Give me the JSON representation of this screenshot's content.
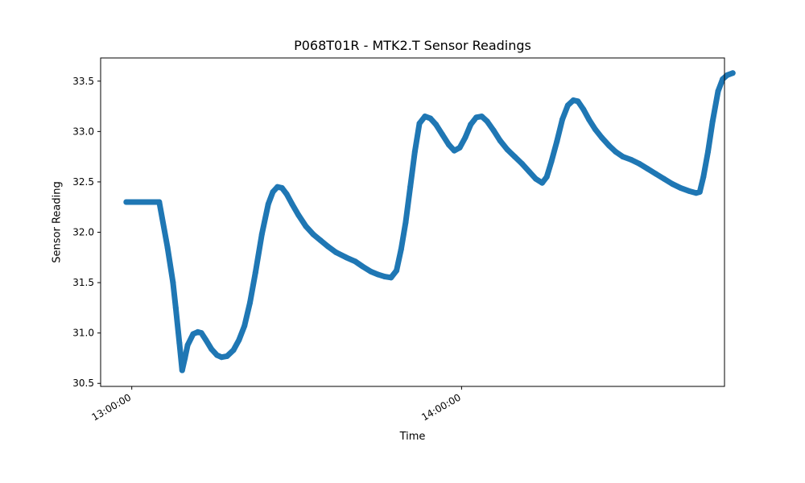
{
  "chart_data": {
    "type": "scatter",
    "title": "P068T01R - MTK2.T Sensor Readings",
    "xlabel": "Time",
    "ylabel": "Sensor Reading",
    "x_ticks": [
      {
        "time": "13:00:00",
        "label": "13:00:00"
      },
      {
        "time": "14:00:00",
        "label": "14:00:00"
      }
    ],
    "y_ticks": [
      30.5,
      31.0,
      31.5,
      32.0,
      32.5,
      33.0,
      33.5
    ],
    "xlim": [
      "12:54:20",
      "14:47:50"
    ],
    "ylim": [
      30.47,
      33.73
    ],
    "grid": false,
    "marker_color": "#1f77b4",
    "series": [
      {
        "points": [
          [
            "12:59:00",
            32.3
          ],
          [
            "13:05:00",
            32.3
          ],
          [
            "13:06:30",
            31.85
          ],
          [
            "13:07:30",
            31.5
          ],
          [
            "13:08:00",
            31.25
          ],
          [
            "13:08:40",
            30.9
          ],
          [
            "13:09:10",
            30.63
          ],
          [
            "13:09:40",
            30.75
          ],
          [
            "13:10:10",
            30.88
          ],
          [
            "13:11:10",
            30.99
          ],
          [
            "13:12:00",
            31.01
          ],
          [
            "13:12:40",
            31.0
          ],
          [
            "13:13:30",
            30.93
          ],
          [
            "13:14:30",
            30.84
          ],
          [
            "13:15:30",
            30.78
          ],
          [
            "13:16:20",
            30.76
          ],
          [
            "13:17:20",
            30.77
          ],
          [
            "13:18:30",
            30.83
          ],
          [
            "13:19:30",
            30.93
          ],
          [
            "13:20:30",
            31.07
          ],
          [
            "13:21:30",
            31.3
          ],
          [
            "13:22:30",
            31.6
          ],
          [
            "13:23:40",
            31.98
          ],
          [
            "13:24:50",
            32.28
          ],
          [
            "13:25:40",
            32.4
          ],
          [
            "13:26:30",
            32.45
          ],
          [
            "13:27:20",
            32.44
          ],
          [
            "13:28:10",
            32.38
          ],
          [
            "13:29:10",
            32.28
          ],
          [
            "13:30:20",
            32.17
          ],
          [
            "13:31:40",
            32.06
          ],
          [
            "13:33:00",
            31.98
          ],
          [
            "13:34:20",
            31.92
          ],
          [
            "13:35:40",
            31.86
          ],
          [
            "13:37:10",
            31.8
          ],
          [
            "13:39:00",
            31.75
          ],
          [
            "13:40:40",
            31.71
          ],
          [
            "13:42:00",
            31.66
          ],
          [
            "13:43:30",
            31.61
          ],
          [
            "13:44:50",
            31.58
          ],
          [
            "13:46:00",
            31.56
          ],
          [
            "13:47:10",
            31.55
          ],
          [
            "13:48:10",
            31.62
          ],
          [
            "13:49:00",
            31.83
          ],
          [
            "13:49:50",
            32.1
          ],
          [
            "13:50:40",
            32.45
          ],
          [
            "13:51:30",
            32.8
          ],
          [
            "13:52:20",
            33.08
          ],
          [
            "13:53:20",
            33.15
          ],
          [
            "13:54:20",
            33.13
          ],
          [
            "13:55:20",
            33.07
          ],
          [
            "13:56:30",
            32.97
          ],
          [
            "13:57:40",
            32.87
          ],
          [
            "13:58:40",
            32.81
          ],
          [
            "13:59:40",
            32.84
          ],
          [
            "14:00:40",
            32.94
          ],
          [
            "14:01:40",
            33.07
          ],
          [
            "14:02:40",
            33.14
          ],
          [
            "14:03:40",
            33.15
          ],
          [
            "14:04:40",
            33.1
          ],
          [
            "14:05:50",
            33.01
          ],
          [
            "14:07:00",
            32.91
          ],
          [
            "14:08:20",
            32.82
          ],
          [
            "14:09:40",
            32.75
          ],
          [
            "14:11:00",
            32.68
          ],
          [
            "14:12:20",
            32.6
          ],
          [
            "14:13:30",
            32.53
          ],
          [
            "14:14:40",
            32.49
          ],
          [
            "14:15:30",
            32.55
          ],
          [
            "14:16:20",
            32.7
          ],
          [
            "14:17:20",
            32.9
          ],
          [
            "14:18:20",
            33.12
          ],
          [
            "14:19:20",
            33.26
          ],
          [
            "14:20:20",
            33.31
          ],
          [
            "14:21:10",
            33.3
          ],
          [
            "14:22:10",
            33.22
          ],
          [
            "14:23:10",
            33.12
          ],
          [
            "14:24:20",
            33.02
          ],
          [
            "14:25:30",
            32.94
          ],
          [
            "14:26:50",
            32.86
          ],
          [
            "14:28:00",
            32.8
          ],
          [
            "14:29:20",
            32.75
          ],
          [
            "14:30:50",
            32.72
          ],
          [
            "14:32:20",
            32.68
          ],
          [
            "14:33:50",
            32.63
          ],
          [
            "14:35:20",
            32.58
          ],
          [
            "14:36:50",
            32.53
          ],
          [
            "14:38:20",
            32.48
          ],
          [
            "14:39:50",
            32.44
          ],
          [
            "14:41:20",
            32.41
          ],
          [
            "14:42:40",
            32.39
          ],
          [
            "14:43:20",
            32.4
          ],
          [
            "14:44:00",
            32.55
          ],
          [
            "14:44:50",
            32.8
          ],
          [
            "14:45:40",
            33.1
          ],
          [
            "14:46:40",
            33.4
          ],
          [
            "14:47:30",
            33.52
          ],
          [
            "14:48:20",
            33.56
          ],
          [
            "14:49:20",
            33.58
          ]
        ]
      }
    ]
  }
}
